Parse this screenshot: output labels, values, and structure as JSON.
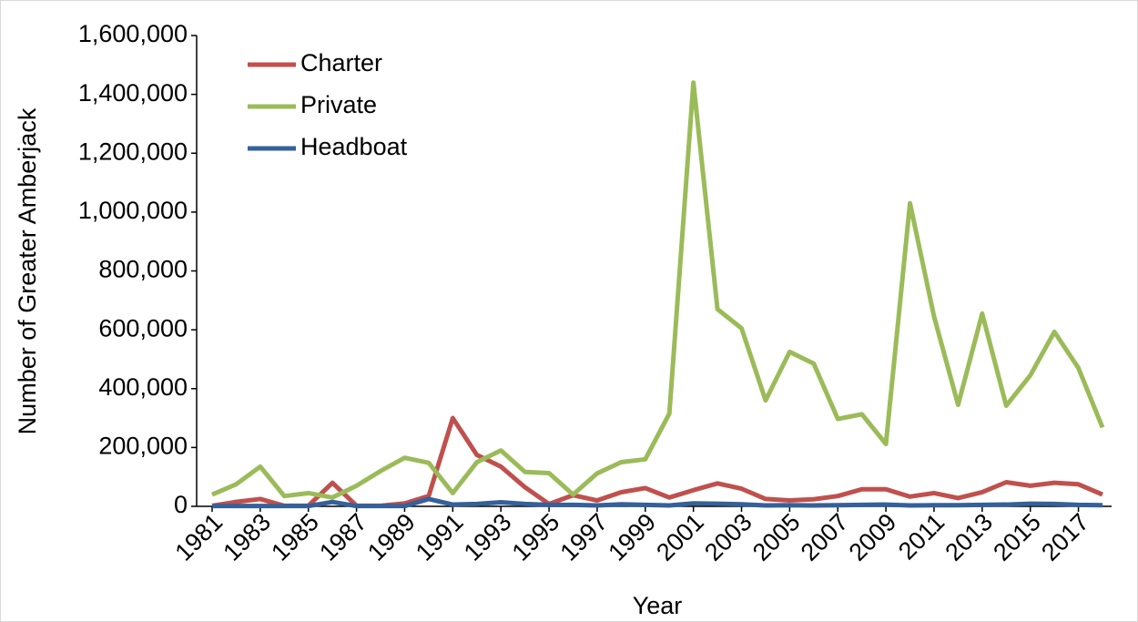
{
  "chart_data": {
    "type": "line",
    "x_label": "Year",
    "y_label": "Number of Greater Amberjack",
    "x": [
      1981,
      1982,
      1983,
      1984,
      1985,
      1986,
      1987,
      1988,
      1989,
      1990,
      1991,
      1992,
      1993,
      1994,
      1995,
      1996,
      1997,
      1998,
      1999,
      2000,
      2001,
      2002,
      2003,
      2004,
      2005,
      2006,
      2007,
      2008,
      2009,
      2010,
      2011,
      2012,
      2013,
      2014,
      2015,
      2016,
      2017,
      2018
    ],
    "series": [
      {
        "name": "Charter",
        "color": "#c0504d",
        "values": [
          2000,
          15000,
          25000,
          2000,
          2000,
          80000,
          2000,
          2000,
          10000,
          35000,
          300000,
          175000,
          135000,
          65000,
          8000,
          38000,
          20000,
          48000,
          62000,
          30000,
          55000,
          78000,
          60000,
          25000,
          20000,
          24000,
          35000,
          58000,
          58000,
          33000,
          45000,
          28000,
          48000,
          82000,
          70000,
          80000,
          75000,
          40000
        ]
      },
      {
        "name": "Private",
        "color": "#9bbb59",
        "values": [
          40000,
          75000,
          135000,
          35000,
          45000,
          30000,
          70000,
          120000,
          165000,
          148000,
          45000,
          150000,
          190000,
          117000,
          113000,
          40000,
          112000,
          150000,
          160000,
          315000,
          1440000,
          670000,
          605000,
          360000,
          525000,
          485000,
          297000,
          313000,
          212000,
          1030000,
          645000,
          345000,
          655000,
          342000,
          445000,
          593000,
          470000,
          268000
        ]
      },
      {
        "name": "Headboat",
        "color": "#35619a",
        "values": [
          1000,
          1000,
          1000,
          1000,
          1000,
          15000,
          1000,
          1000,
          1000,
          25000,
          6000,
          8000,
          14000,
          8000,
          5000,
          5000,
          3000,
          7000,
          5000,
          3000,
          10000,
          9000,
          7000,
          3000,
          4000,
          3000,
          4000,
          5000,
          6000,
          3000,
          4000,
          4000,
          5000,
          6000,
          9000,
          8000,
          5000,
          4000
        ]
      }
    ],
    "xlim": [
      1981,
      2018
    ],
    "xticks": [
      1981,
      1983,
      1985,
      1987,
      1989,
      1991,
      1993,
      1995,
      1997,
      1999,
      2001,
      2003,
      2005,
      2007,
      2009,
      2011,
      2013,
      2015,
      2017
    ],
    "ylim": [
      0,
      1600000
    ],
    "yticks": [
      0,
      {
        "value": 200000,
        "label": "200,000"
      },
      {
        "value": 400000,
        "label": "400,000"
      },
      {
        "value": 600000,
        "label": "600,000"
      },
      {
        "value": 800000,
        "label": "800,000"
      },
      {
        "value": 1000000,
        "label": "1,000,000"
      },
      {
        "value": 1200000,
        "label": "1,200,000"
      },
      {
        "value": 1400000,
        "label": "1,400,000"
      },
      {
        "value": 1600000,
        "label": "1,600,000"
      }
    ],
    "legend": "top-left",
    "grid": false
  }
}
